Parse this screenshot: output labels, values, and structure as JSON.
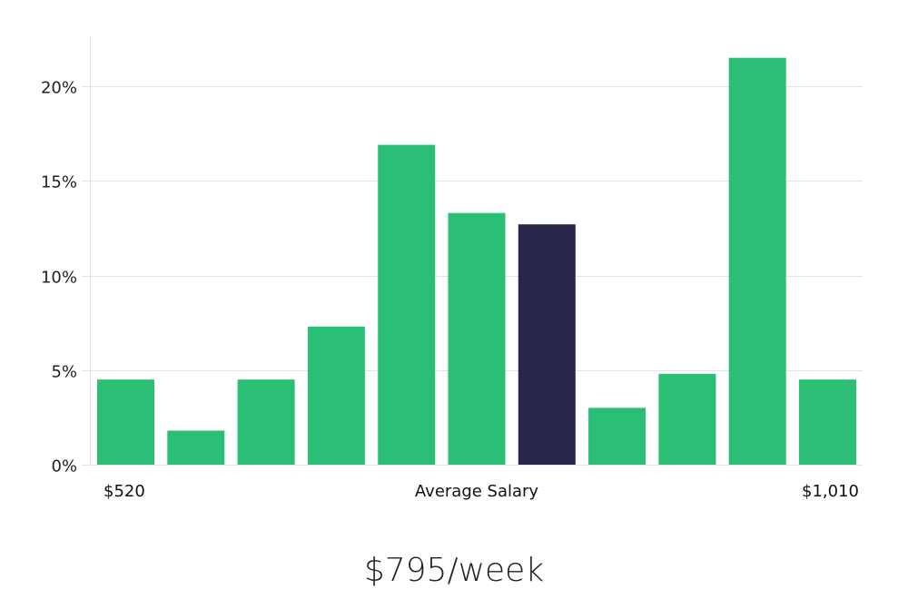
{
  "chart_data": {
    "type": "bar",
    "values": [
      4.5,
      1.8,
      4.5,
      7.3,
      16.9,
      13.3,
      12.7,
      3.0,
      4.8,
      21.5,
      4.5
    ],
    "highlight_index": 6,
    "bar_color": "#2bbe75",
    "highlight_color": "#28264a",
    "ylim": [
      0,
      22.5
    ],
    "yticks": [
      0,
      5,
      10,
      15,
      20
    ],
    "ytick_labels": [
      "0%",
      "5%",
      "10%",
      "15%",
      "20%"
    ],
    "x_left_label": "$520",
    "x_center_label": "Average Salary",
    "x_right_label": "$1,010",
    "grid": true
  },
  "headline": "$795/week"
}
